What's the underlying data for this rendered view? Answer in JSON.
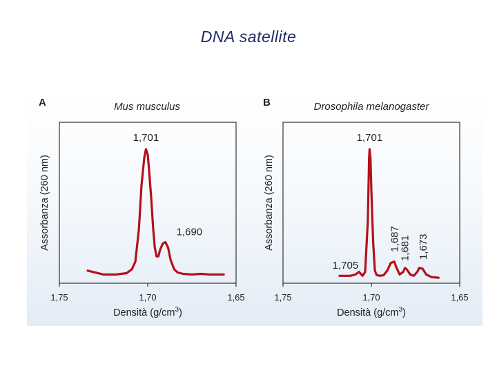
{
  "slide": {
    "title": "DNA satellite"
  },
  "chart_data": [
    {
      "type": "line",
      "panel_letter": "A",
      "title": "Mus musculus",
      "xlabel": "Densità (g/cm³)",
      "xlabel_main": "Densità (g/cm",
      "xlabel_sup": "3",
      "xlabel_end": ")",
      "ylabel": "Assorbanza (260 nm)",
      "xlim": [
        1.75,
        1.65
      ],
      "x_ticks": [
        1.75,
        1.7,
        1.65
      ],
      "x_tick_labels": [
        "1,75",
        "1,70",
        "1,65"
      ],
      "ylim": [
        0,
        1
      ],
      "series": [
        {
          "name": "Mus musculus",
          "color": "#b3111b",
          "x": [
            1.734,
            1.725,
            1.718,
            1.712,
            1.709,
            1.707,
            1.705,
            1.7035,
            1.702,
            1.701,
            1.7,
            1.6995,
            1.698,
            1.697,
            1.696,
            1.695,
            1.694,
            1.693,
            1.6915,
            1.69,
            1.6885,
            1.687,
            1.685,
            1.683,
            1.68,
            1.675,
            1.67,
            1.665,
            1.66,
            1.657
          ],
          "y": [
            0.06,
            0.03,
            0.03,
            0.04,
            0.07,
            0.13,
            0.38,
            0.72,
            0.93,
            1.0,
            0.96,
            0.88,
            0.62,
            0.4,
            0.24,
            0.17,
            0.17,
            0.22,
            0.27,
            0.28,
            0.24,
            0.14,
            0.07,
            0.045,
            0.035,
            0.03,
            0.035,
            0.03,
            0.03,
            0.03
          ]
        }
      ],
      "annotations": [
        {
          "text": "1,701",
          "x": 1.701,
          "y": 1.0
        },
        {
          "text": "1,690",
          "x": 1.69,
          "y": 0.28
        }
      ]
    },
    {
      "type": "line",
      "panel_letter": "B",
      "title": "Drosophila melanogaster",
      "xlabel": "Densità (g/cm³)",
      "xlabel_main": "Densità (g/cm",
      "xlabel_sup": "3",
      "xlabel_end": ")",
      "ylabel": "Assorbanza (260 nm)",
      "xlim": [
        1.75,
        1.65
      ],
      "x_ticks": [
        1.75,
        1.7,
        1.65
      ],
      "x_tick_labels": [
        "1,75",
        "1,70",
        "1,65"
      ],
      "ylim": [
        0,
        1
      ],
      "series": [
        {
          "name": "Drosophila melanogaster",
          "color": "#b3111b",
          "x": [
            1.718,
            1.712,
            1.709,
            1.707,
            1.705,
            1.7035,
            1.702,
            1.7013,
            1.701,
            1.7005,
            1.7,
            1.699,
            1.698,
            1.697,
            1.695,
            1.693,
            1.691,
            1.689,
            1.687,
            1.686,
            1.684,
            1.682,
            1.681,
            1.68,
            1.678,
            1.676,
            1.674,
            1.673,
            1.671,
            1.669,
            1.666,
            1.662
          ],
          "y": [
            0.02,
            0.02,
            0.03,
            0.05,
            0.02,
            0.05,
            0.45,
            0.93,
            1.0,
            0.93,
            0.68,
            0.28,
            0.06,
            0.025,
            0.02,
            0.025,
            0.06,
            0.12,
            0.13,
            0.09,
            0.03,
            0.05,
            0.08,
            0.07,
            0.03,
            0.02,
            0.05,
            0.08,
            0.075,
            0.03,
            0.01,
            0.005
          ]
        }
      ],
      "annotations": [
        {
          "text": "1,701",
          "x": 1.701,
          "y": 1.0
        },
        {
          "text": "1,705",
          "x": 1.705,
          "y": 0.05
        },
        {
          "text": "1,687",
          "x": 1.687,
          "y": 0.13
        },
        {
          "text": "1,681",
          "x": 1.681,
          "y": 0.08
        },
        {
          "text": "1,673",
          "x": 1.673,
          "y": 0.08
        }
      ]
    }
  ]
}
